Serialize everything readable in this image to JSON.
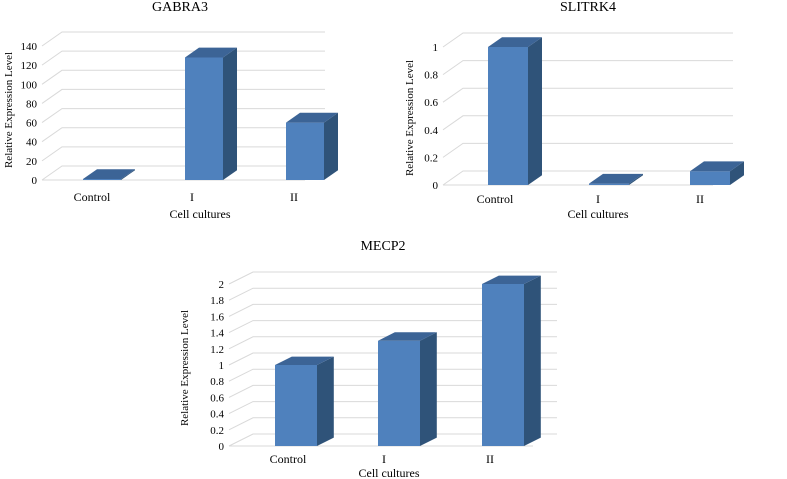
{
  "charts": [
    {
      "title": "GABRA3",
      "xlabel": "Cell cultures",
      "ylabel": "Relative Expression Level",
      "ticks": [
        "0",
        "20",
        "40",
        "60",
        "80",
        "100",
        "120",
        "140"
      ],
      "categories": [
        "Control",
        "I",
        "II"
      ]
    },
    {
      "title": "SLITRK4",
      "xlabel": "Cell cultures",
      "ylabel": "Relative Expression Level",
      "ticks": [
        "0",
        "0.2",
        "0.4",
        "0.6",
        "0.8",
        "1"
      ],
      "categories": [
        "Control",
        "I",
        "II"
      ]
    },
    {
      "title": "MECP2",
      "xlabel": "Cell cultures",
      "ylabel": "Relative Expression Level",
      "ticks": [
        "0",
        "0.2",
        "0.4",
        "0.6",
        "0.8",
        "1",
        "1.2",
        "1.4",
        "1.6",
        "1.8",
        "2"
      ],
      "categories": [
        "Control",
        "I",
        "II"
      ]
    }
  ],
  "chart_data": [
    {
      "type": "bar",
      "title": "GABRA3",
      "xlabel": "Cell cultures",
      "ylabel": "Relative Expression Level",
      "categories": [
        "Control",
        "I",
        "II"
      ],
      "values": [
        1,
        128,
        60
      ],
      "ylim": [
        0,
        140
      ],
      "grid": true,
      "style": "3d-column",
      "color": "#4f81bd"
    },
    {
      "type": "bar",
      "title": "SLITRK4",
      "xlabel": "Cell cultures",
      "ylabel": "Relative Expression Level",
      "categories": [
        "Control",
        "I",
        "II"
      ],
      "values": [
        1,
        0.01,
        0.1
      ],
      "ylim": [
        0,
        1
      ],
      "grid": true,
      "style": "3d-column",
      "color": "#4f81bd"
    },
    {
      "type": "bar",
      "title": "MECP2",
      "xlabel": "Cell cultures",
      "ylabel": "Relative Expression Level",
      "categories": [
        "Control",
        "I",
        "II"
      ],
      "values": [
        1,
        1.3,
        2.0
      ],
      "ylim": [
        0,
        2
      ],
      "grid": true,
      "style": "3d-column",
      "color": "#4f81bd"
    }
  ]
}
